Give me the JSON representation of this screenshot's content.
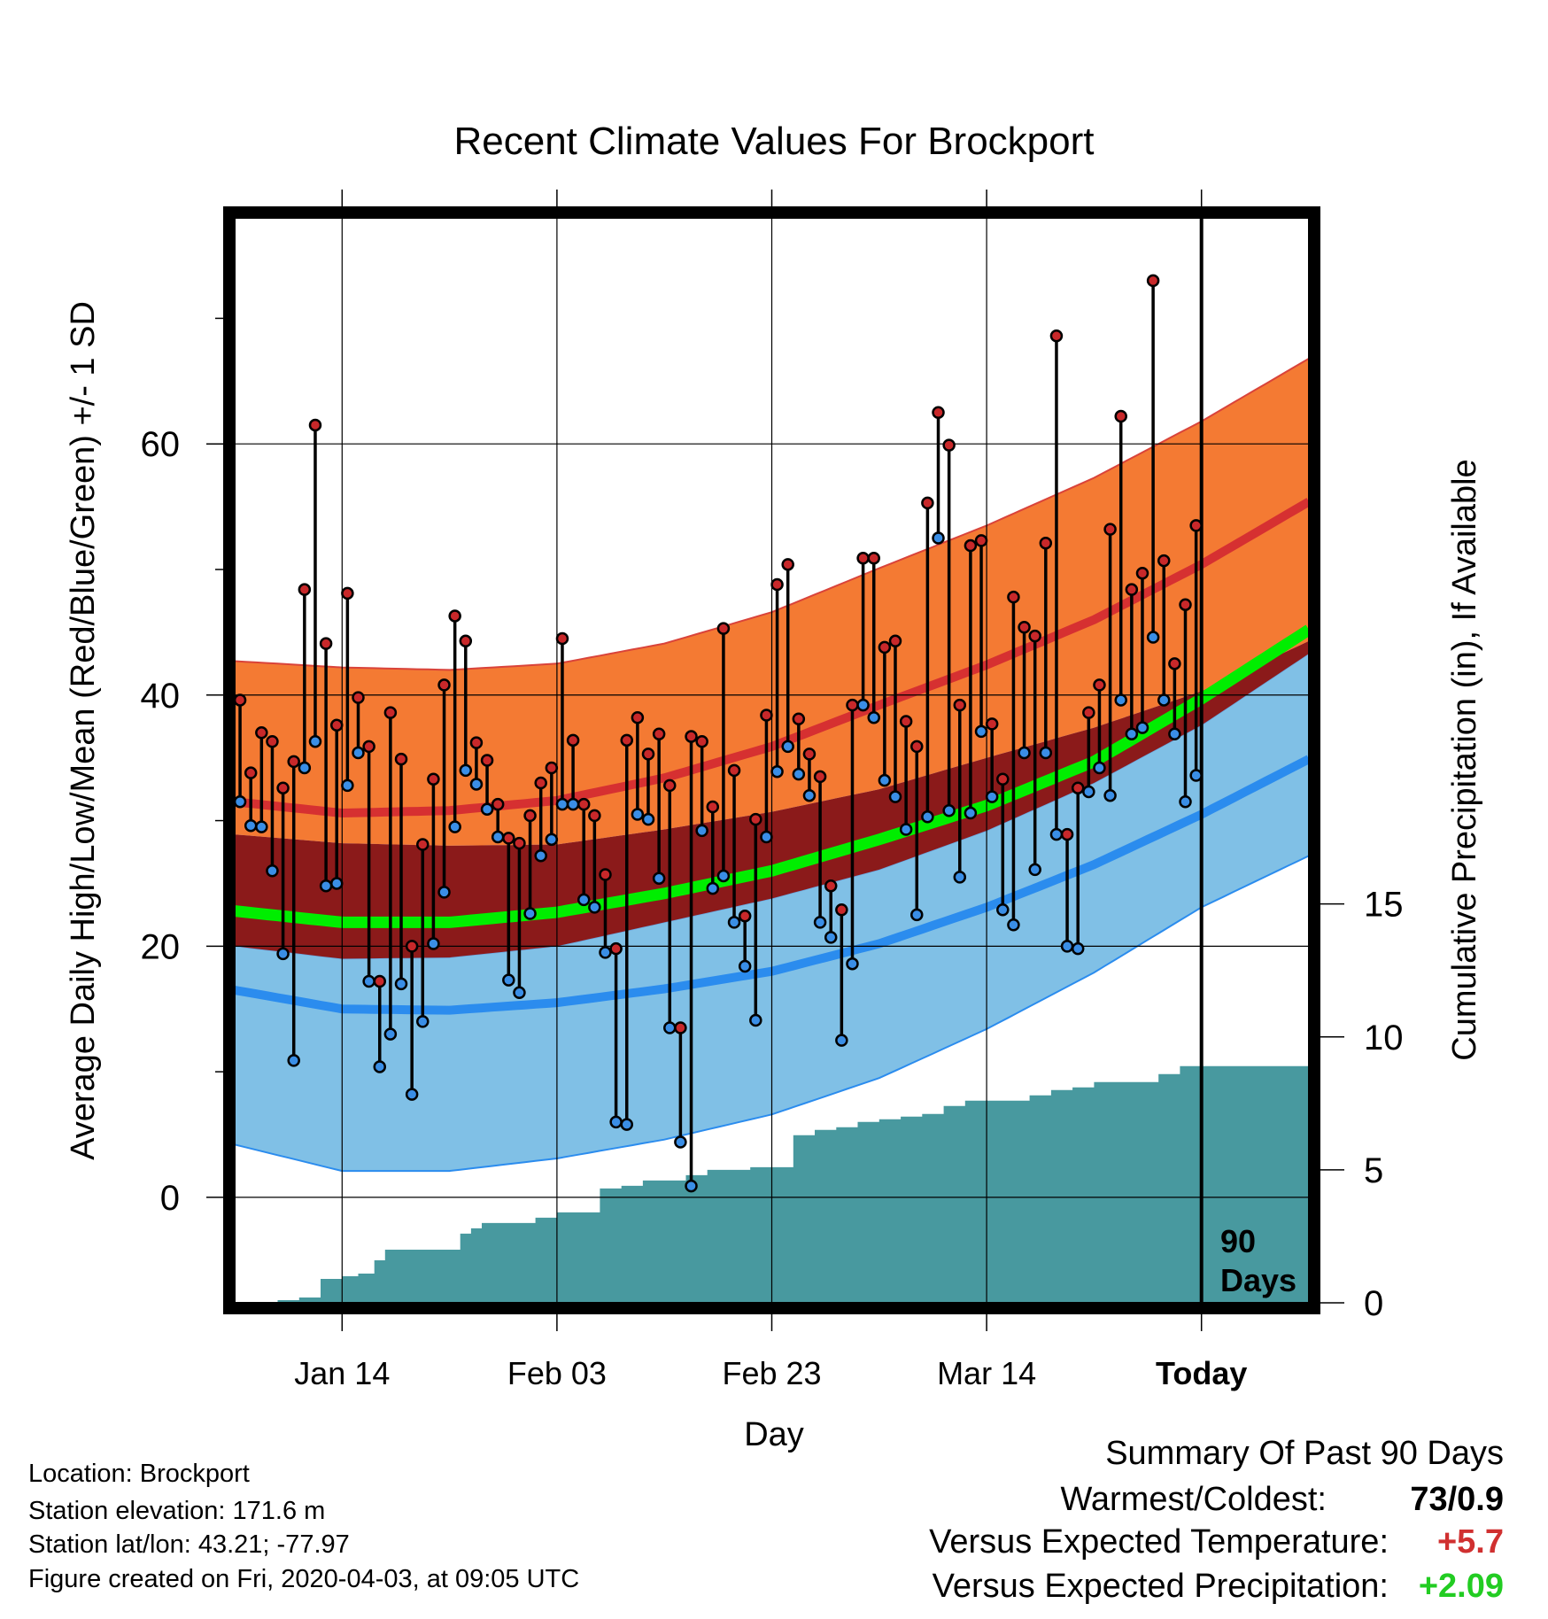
{
  "chart_data": {
    "type": "line",
    "title": "Recent Climate Values For Brockport",
    "xlabel": "Day",
    "ylabel": "Average Daily High/Low/Mean (Red/Blue/Green) +/- 1 SD",
    "ylabel_right": "Cumulative Precipitation (in), If Available",
    "x_tick_labels": [
      "Jan 14",
      "Feb 03",
      "Feb 23",
      "Mar 14",
      "Today"
    ],
    "x_ticks_day": [
      10,
      30,
      50,
      70,
      90
    ],
    "xlim_day": [
      0,
      100
    ],
    "y_ticks": [
      0,
      20,
      40,
      60
    ],
    "ylim": [
      -8.4,
      78
    ],
    "y2_ticks": [
      0,
      5,
      10,
      15
    ],
    "y2lim": [
      0,
      40.8
    ],
    "grid": true,
    "today_marker": {
      "day": 90,
      "label_line1": "90",
      "label_line2": "Days"
    },
    "normal_high": {
      "days": [
        0,
        10,
        20,
        30,
        40,
        50,
        60,
        70,
        80,
        90,
        100
      ],
      "values": [
        31.5,
        30.6,
        30.8,
        31.6,
        33.4,
        35.9,
        39.2,
        42.4,
        46.0,
        50.4,
        55.4
      ]
    },
    "normal_high_plus": {
      "days": [
        0,
        10,
        20,
        30,
        40,
        50,
        60,
        70,
        80,
        90,
        100
      ],
      "values": [
        42.7,
        42.2,
        42.0,
        42.5,
        44.1,
        46.6,
        50.1,
        53.5,
        57.3,
        61.8,
        66.8
      ]
    },
    "normal_high_minus": {
      "days": [
        0,
        10,
        20,
        30,
        40,
        50,
        60,
        70,
        80,
        90,
        100
      ],
      "values": [
        28.9,
        28.2,
        28.0,
        28.1,
        29.3,
        30.7,
        32.5,
        35.0,
        37.4,
        40.3,
        44.3
      ]
    },
    "normal_mean": {
      "days": [
        0,
        10,
        20,
        30,
        40,
        50,
        60,
        70,
        80,
        90,
        100
      ],
      "values": [
        22.8,
        21.9,
        21.9,
        22.7,
        24.2,
        26.0,
        28.5,
        31.2,
        34.7,
        39.7,
        45.2
      ]
    },
    "normal_low": {
      "days": [
        0,
        10,
        20,
        30,
        40,
        50,
        60,
        70,
        80,
        90,
        100
      ],
      "values": [
        16.5,
        15.0,
        14.9,
        15.5,
        16.6,
        18.0,
        20.2,
        23.1,
        26.5,
        30.5,
        34.9
      ]
    },
    "normal_low_plus": {
      "days": [
        0,
        10,
        20,
        30,
        40,
        50,
        60,
        70,
        80,
        90,
        100
      ],
      "values": [
        20.0,
        19.0,
        19.1,
        20.0,
        21.9,
        23.8,
        26.1,
        29.2,
        33.0,
        37.6,
        43.3
      ]
    },
    "normal_low_minus": {
      "days": [
        0,
        10,
        20,
        30,
        40,
        50,
        60,
        70,
        80,
        90,
        100
      ],
      "values": [
        4.2,
        2.1,
        2.1,
        3.1,
        4.6,
        6.6,
        9.5,
        13.4,
        17.9,
        23.1,
        27.2
      ]
    },
    "daily_high": [
      39.6,
      33.8,
      37.0,
      36.3,
      32.6,
      34.7,
      48.4,
      61.5,
      44.1,
      37.6,
      48.1,
      39.8,
      35.9,
      17.2,
      38.6,
      34.9,
      20.0,
      28.1,
      33.3,
      40.8,
      46.3,
      44.3,
      36.2,
      34.8,
      31.3,
      28.6,
      28.2,
      30.4,
      33.0,
      34.2,
      44.5,
      36.4,
      31.3,
      30.4,
      25.7,
      19.8,
      36.4,
      38.2,
      35.3,
      36.9,
      32.8,
      13.5,
      36.7,
      36.3,
      31.1,
      45.3,
      34.0,
      22.4,
      30.1,
      38.4,
      48.8,
      50.4,
      38.1,
      35.3,
      33.5,
      24.8,
      22.9,
      39.2,
      50.9,
      50.9,
      43.8,
      44.3,
      37.9,
      35.9,
      55.3,
      62.5,
      59.9,
      39.2,
      51.9,
      52.3,
      37.7,
      33.3,
      47.8,
      45.4,
      44.7,
      52.1,
      68.6,
      28.9,
      32.6,
      38.6,
      40.8,
      53.2,
      62.2,
      48.4,
      49.7,
      73.0,
      50.7,
      42.5,
      47.2,
      53.5
    ],
    "daily_low": [
      31.5,
      29.6,
      29.5,
      26.0,
      19.4,
      10.9,
      34.2,
      36.3,
      24.8,
      25.0,
      32.8,
      35.4,
      17.2,
      10.4,
      13.0,
      17.0,
      8.2,
      14.0,
      20.2,
      24.3,
      29.5,
      34.0,
      32.9,
      30.9,
      28.7,
      17.3,
      16.3,
      22.6,
      27.2,
      28.5,
      31.3,
      31.3,
      23.7,
      23.1,
      19.5,
      6.0,
      5.8,
      30.5,
      30.1,
      25.4,
      13.5,
      4.4,
      0.9,
      29.2,
      24.6,
      25.6,
      21.9,
      18.4,
      14.1,
      28.7,
      33.9,
      35.9,
      33.7,
      32.0,
      21.9,
      20.7,
      12.5,
      18.6,
      39.2,
      38.2,
      33.2,
      31.9,
      29.3,
      22.5,
      30.3,
      52.5,
      30.8,
      25.5,
      30.6,
      37.1,
      31.9,
      22.9,
      21.7,
      35.4,
      26.1,
      35.4,
      28.9,
      20.0,
      19.8,
      32.3,
      34.2,
      32.0,
      39.6,
      36.9,
      37.4,
      44.6,
      39.6,
      36.9,
      31.5,
      33.6
    ],
    "cum_precip_days": [
      0,
      2,
      4,
      6,
      8,
      10,
      11.5,
      13,
      14,
      15,
      17,
      19,
      21,
      22,
      23,
      24,
      26,
      28,
      30,
      32,
      34,
      36,
      38,
      40,
      42,
      44,
      46,
      48,
      50,
      52,
      54,
      56,
      58,
      60,
      62,
      64,
      66,
      68,
      70,
      72,
      74,
      76,
      78,
      80,
      82,
      84,
      86,
      88,
      90,
      100
    ],
    "cum_precip_values": [
      0.0,
      0.0,
      0.1,
      0.2,
      0.9,
      1.0,
      1.1,
      1.6,
      2.0,
      2.0,
      2.0,
      2.0,
      2.6,
      2.8,
      3.0,
      3.0,
      3.0,
      3.2,
      3.4,
      3.4,
      4.3,
      4.4,
      4.6,
      4.6,
      4.8,
      5.0,
      5.0,
      5.1,
      5.1,
      6.3,
      6.5,
      6.6,
      6.8,
      6.9,
      7.0,
      7.1,
      7.4,
      7.6,
      7.6,
      7.6,
      7.8,
      8.0,
      8.1,
      8.3,
      8.3,
      8.3,
      8.6,
      8.9,
      8.9,
      8.9
    ]
  },
  "footer": {
    "location": "Location: Brockport",
    "elevation": "Station elevation: 171.6 m",
    "latlon": "Station lat/lon: 43.21; -77.97",
    "created": "Figure created on Fri, 2020-04-03, at 09:05 UTC"
  },
  "summary": {
    "heading": "Summary Of Past 90 Days",
    "warmest_label": "Warmest/Coldest:",
    "warmest_value": "73/0.9",
    "temp_label": "Versus Expected Temperature:",
    "temp_value": "+5.7",
    "precip_label": "Versus Expected Precipitation:",
    "precip_value": "+2.09"
  },
  "colors": {
    "high_band": "#f47a33",
    "high_line": "#d63031",
    "mean_band": "#8b1a1a",
    "mean_line": "#00ee00",
    "low_band": "#80c0e6",
    "low_line": "#2b8cee",
    "precip": "#48999f",
    "high_marker": "#c8282a",
    "low_marker": "#3a8ee6",
    "temp_value": "#d03030",
    "precip_value": "#22cc22"
  }
}
